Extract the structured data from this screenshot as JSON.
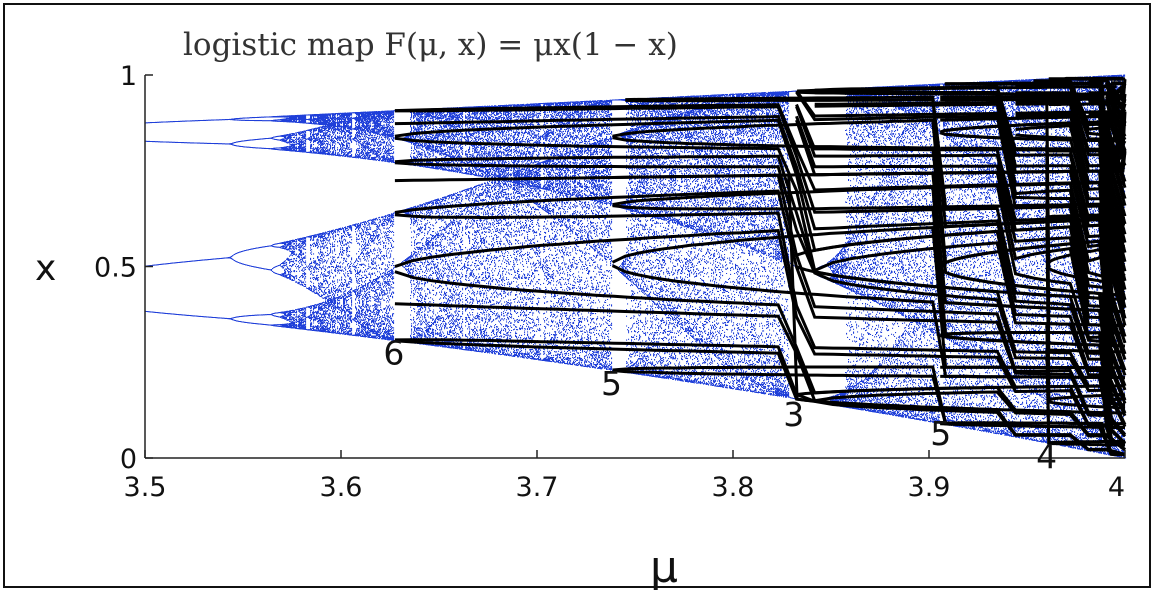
{
  "chart_data": {
    "type": "scatter",
    "title": "logistic map F(μ, x) = μx(1 − x)",
    "xlabel": "μ",
    "ylabel": "x",
    "xlim": [
      3.5,
      4.0
    ],
    "ylim": [
      0,
      1
    ],
    "xticks": [
      "3.5",
      "3.6",
      "3.7",
      "3.8",
      "3.9",
      "4"
    ],
    "yticks": [
      "0",
      "0.5",
      "1"
    ],
    "grid": false,
    "colors": {
      "attractor": "#1f3fd9",
      "unstable_orbits": "#000000"
    },
    "annotations": [
      {
        "text": "6",
        "x": 3.627,
        "y": 0.27
      },
      {
        "text": "5",
        "x": 3.738,
        "y": 0.19
      },
      {
        "text": "3",
        "x": 3.831,
        "y": 0.11
      },
      {
        "text": "5",
        "x": 3.906,
        "y": 0.06
      },
      {
        "text": "4",
        "x": 3.96,
        "y": 0.0
      }
    ]
  }
}
